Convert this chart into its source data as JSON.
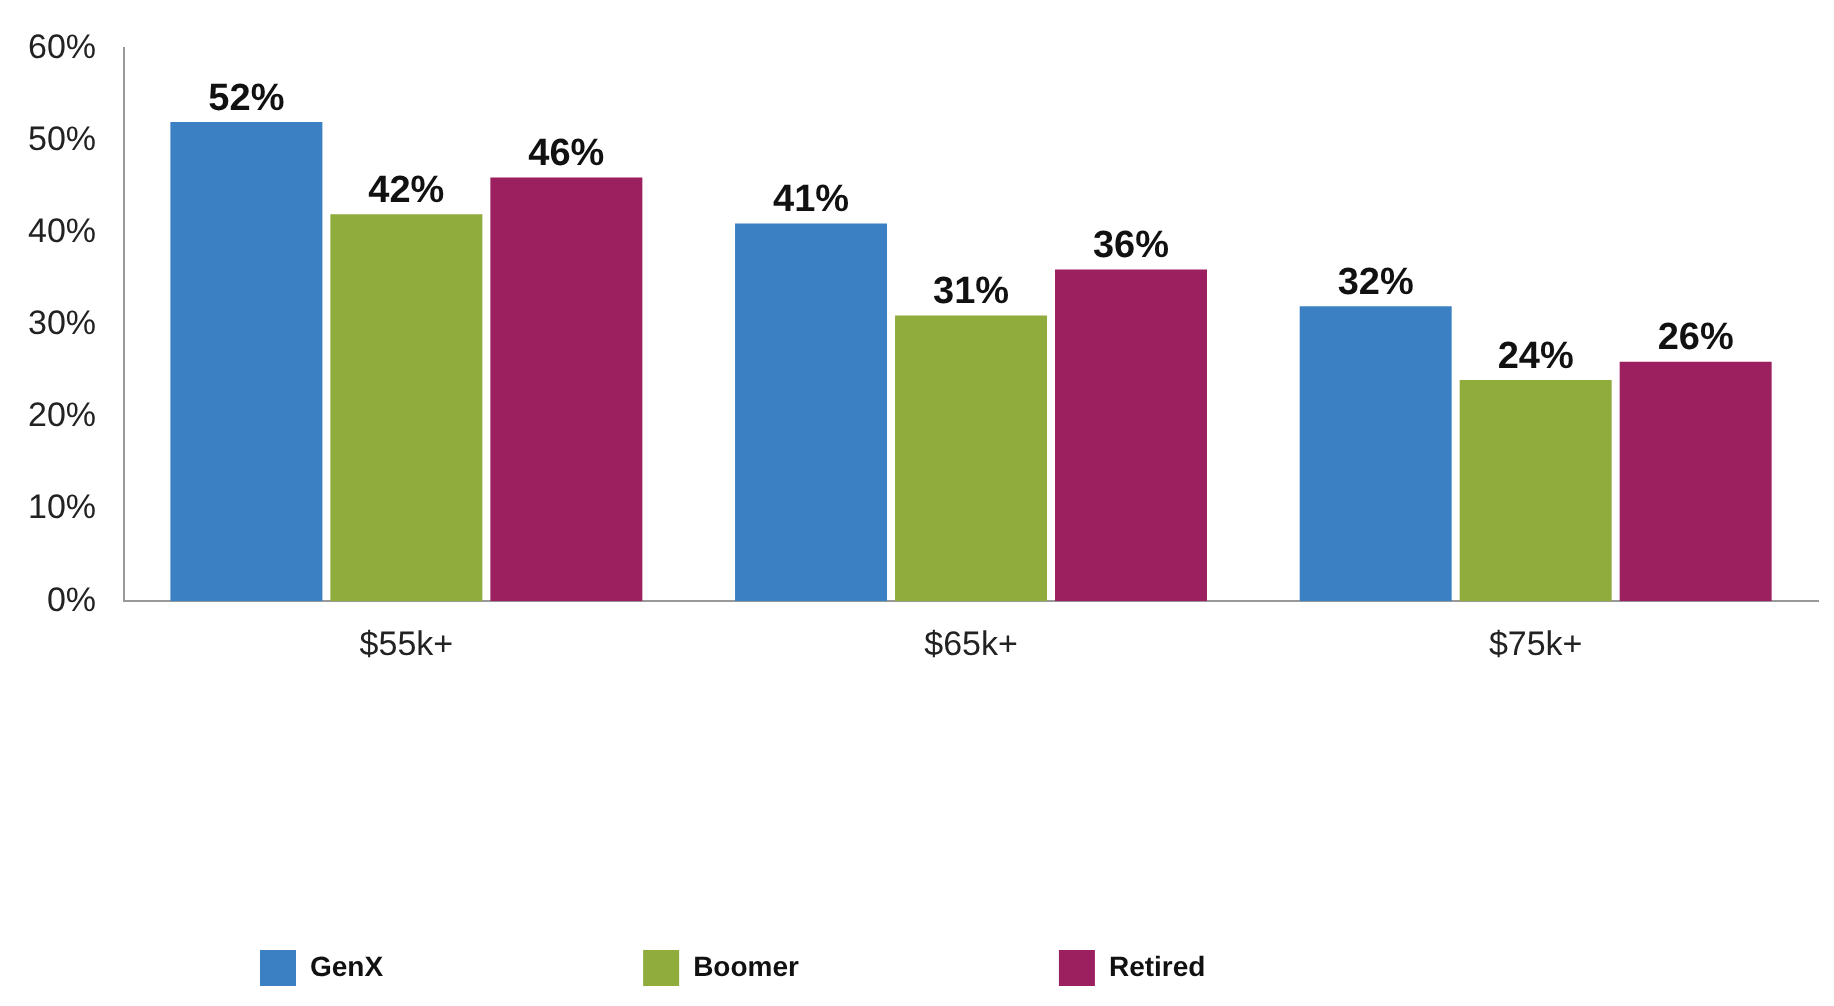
{
  "chart_data": {
    "type": "bar",
    "categories": [
      "$55k+",
      "$65k+",
      "$75k+"
    ],
    "series": [
      {
        "name": "GenX",
        "color": "#3c80c4",
        "values": [
          52,
          41,
          32
        ],
        "value_labels": [
          "52%",
          "41%",
          "32%"
        ]
      },
      {
        "name": "Boomer",
        "color": "#8fac3c",
        "values": [
          42,
          31,
          24
        ],
        "value_labels": [
          "42%",
          "31%",
          "24%"
        ]
      },
      {
        "name": "Retired",
        "color": "#9c1f5f",
        "values": [
          46,
          36,
          26
        ],
        "value_labels": [
          "46%",
          "36%",
          "26%"
        ]
      }
    ],
    "ylim": [
      0,
      60
    ],
    "yticks": [
      {
        "value": 0,
        "label": "0%"
      },
      {
        "value": 10,
        "label": "10%"
      },
      {
        "value": 20,
        "label": "20%"
      },
      {
        "value": 30,
        "label": "30%"
      },
      {
        "value": 40,
        "label": "40%"
      },
      {
        "value": 50,
        "label": "50%"
      },
      {
        "value": 60,
        "label": "60%"
      }
    ],
    "grid": false,
    "legend": "bottom left"
  }
}
